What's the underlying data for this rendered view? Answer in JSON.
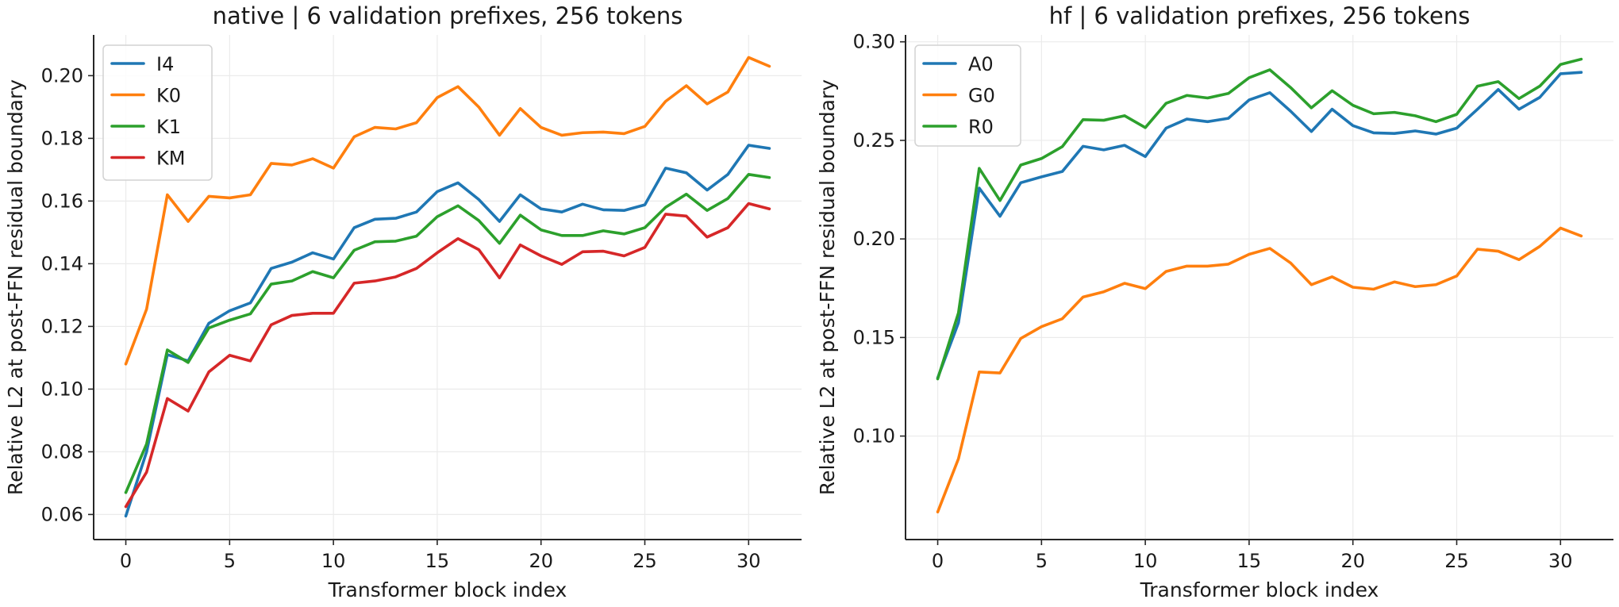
{
  "chart_data": [
    {
      "type": "line",
      "title": "native | 6 validation prefixes, 256 tokens",
      "xlabel": "Transformer block index",
      "ylabel": "Relative L2 at post-FFN residual boundary",
      "xlim": [
        -1.55,
        32.55
      ],
      "ylim": [
        0.052,
        0.213
      ],
      "xticks": [
        0,
        5,
        10,
        15,
        20,
        25,
        30
      ],
      "yticks": [
        0.06,
        0.08,
        0.1,
        0.12,
        0.14,
        0.16,
        0.18,
        0.2
      ],
      "ytick_labels": [
        "0.06",
        "0.08",
        "0.10",
        "0.12",
        "0.14",
        "0.16",
        "0.18",
        "0.20"
      ],
      "grid": true,
      "legend_position": "top-left",
      "x": [
        0,
        1,
        2,
        3,
        4,
        5,
        6,
        7,
        8,
        9,
        10,
        11,
        12,
        13,
        14,
        15,
        16,
        17,
        18,
        19,
        20,
        21,
        22,
        23,
        24,
        25,
        26,
        27,
        28,
        29,
        30,
        31
      ],
      "series": [
        {
          "name": "I4",
          "color": "#1f77b4",
          "values": [
            0.0595,
            0.08,
            0.111,
            0.109,
            0.121,
            0.125,
            0.1275,
            0.1385,
            0.1405,
            0.1435,
            0.1415,
            0.1515,
            0.1542,
            0.1545,
            0.1565,
            0.163,
            0.1658,
            0.1605,
            0.1535,
            0.162,
            0.1575,
            0.1565,
            0.159,
            0.1572,
            0.157,
            0.1588,
            0.1705,
            0.169,
            0.1635,
            0.1685,
            0.1778,
            0.1768
          ]
        },
        {
          "name": "K0",
          "color": "#ff7f0e",
          "values": [
            0.108,
            0.1255,
            0.162,
            0.1535,
            0.1615,
            0.161,
            0.162,
            0.172,
            0.1715,
            0.1735,
            0.1705,
            0.1805,
            0.1835,
            0.183,
            0.185,
            0.193,
            0.1965,
            0.19,
            0.181,
            0.1895,
            0.1835,
            0.181,
            0.1818,
            0.182,
            0.1815,
            0.1838,
            0.1918,
            0.1968,
            0.191,
            0.1948,
            0.2058,
            0.203
          ]
        },
        {
          "name": "K1",
          "color": "#2ca02c",
          "values": [
            0.067,
            0.0825,
            0.1125,
            0.1085,
            0.1195,
            0.122,
            0.124,
            0.1335,
            0.1345,
            0.1375,
            0.1355,
            0.1443,
            0.147,
            0.1472,
            0.1488,
            0.155,
            0.1585,
            0.1538,
            0.1465,
            0.1555,
            0.1508,
            0.149,
            0.149,
            0.1505,
            0.1495,
            0.1515,
            0.158,
            0.1622,
            0.157,
            0.1608,
            0.1685,
            0.1675
          ]
        },
        {
          "name": "KM",
          "color": "#d62728",
          "values": [
            0.0625,
            0.0735,
            0.097,
            0.093,
            0.1055,
            0.1108,
            0.109,
            0.1205,
            0.1235,
            0.1242,
            0.1242,
            0.1338,
            0.1345,
            0.1358,
            0.1385,
            0.1435,
            0.148,
            0.1445,
            0.1355,
            0.146,
            0.1425,
            0.1398,
            0.1438,
            0.144,
            0.1425,
            0.1452,
            0.1558,
            0.1552,
            0.1485,
            0.1515,
            0.1592,
            0.1575
          ]
        }
      ]
    },
    {
      "type": "line",
      "title": "hf | 6 validation prefixes, 256 tokens",
      "xlabel": "Transformer block index",
      "ylabel": "Relative L2 at post-FFN residual boundary",
      "xlim": [
        -1.55,
        32.55
      ],
      "ylim": [
        0.0475,
        0.3035
      ],
      "xticks": [
        0,
        5,
        10,
        15,
        20,
        25,
        30
      ],
      "yticks": [
        0.1,
        0.15,
        0.2,
        0.25,
        0.3
      ],
      "ytick_labels": [
        "0.10",
        "0.15",
        "0.20",
        "0.25",
        "0.30"
      ],
      "grid": true,
      "legend_position": "top-left",
      "x": [
        0,
        1,
        2,
        3,
        4,
        5,
        6,
        7,
        8,
        9,
        10,
        11,
        12,
        13,
        14,
        15,
        16,
        17,
        18,
        19,
        20,
        21,
        22,
        23,
        24,
        25,
        26,
        27,
        28,
        29,
        30,
        31
      ],
      "series": [
        {
          "name": "A0",
          "color": "#1f77b4",
          "values": [
            0.1295,
            0.1575,
            0.2258,
            0.2115,
            0.2285,
            0.2315,
            0.2342,
            0.247,
            0.2452,
            0.2475,
            0.2418,
            0.2562,
            0.2608,
            0.2595,
            0.2612,
            0.2705,
            0.2742,
            0.2648,
            0.2545,
            0.2658,
            0.2575,
            0.2538,
            0.2535,
            0.2548,
            0.2532,
            0.2562,
            0.2658,
            0.2758,
            0.2658,
            0.2718,
            0.2838,
            0.2845
          ]
        },
        {
          "name": "G0",
          "color": "#ff7f0e",
          "values": [
            0.0615,
            0.0885,
            0.1325,
            0.132,
            0.1495,
            0.1555,
            0.1595,
            0.1705,
            0.1732,
            0.1775,
            0.1748,
            0.1835,
            0.1862,
            0.1862,
            0.1872,
            0.1922,
            0.1952,
            0.1878,
            0.1768,
            0.1808,
            0.1755,
            0.1745,
            0.1782,
            0.1758,
            0.1768,
            0.1812,
            0.1948,
            0.1938,
            0.1895,
            0.1962,
            0.2055,
            0.2015
          ]
        },
        {
          "name": "R0",
          "color": "#2ca02c",
          "values": [
            0.129,
            0.1625,
            0.2358,
            0.2195,
            0.2375,
            0.2408,
            0.2468,
            0.2605,
            0.2602,
            0.2625,
            0.2565,
            0.2688,
            0.2728,
            0.2715,
            0.2738,
            0.2818,
            0.2858,
            0.2768,
            0.2665,
            0.2752,
            0.2678,
            0.2635,
            0.2642,
            0.2625,
            0.2595,
            0.2632,
            0.2775,
            0.2798,
            0.2712,
            0.2775,
            0.2885,
            0.2912
          ]
        }
      ]
    }
  ]
}
